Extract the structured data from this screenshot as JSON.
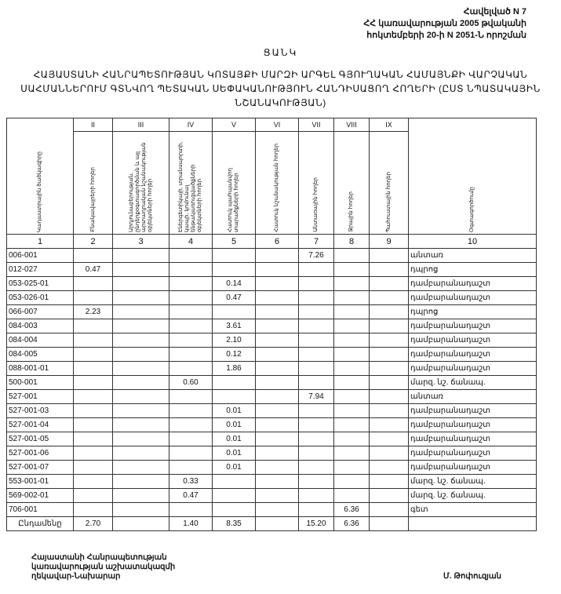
{
  "annex": {
    "line1": "Հավելված N 7",
    "line2": "ՀՀ կառավարության 2005 թվականի",
    "line3": "հոկտեմբերի 20-ի N 2051-Ն որոշման"
  },
  "title": "ՑԱՆԿ",
  "subtitle": "ՀԱՅԱՍՏԱՆԻ ՀԱՆՐԱՊԵՏՈՒԹՅԱՆ ԿՈՏԱՅՔԻ ՄԱՐԶԻ ԱՐԳԵԼ ԳՅՈՒՂԱԿԱՆ ՀԱՄԱՅՆՔԻ ՎԱՐՉԱԿԱՆ ՍԱՀՄԱՆՆԵՐՈՒՄ ԳՏՆՎՈՂ ՊԵՏԱԿԱՆ ՍԵՓԱԿԱՆՈՒԹՅՈՒՆ ՀԱՆԴԻՍԱՑՈՂ ՀՈՂԵՐԻ (ԸՍՏ ՆՊԱՏԱԿԱՅԻՆ ՆՇԱՆԱԿՈՒԹՅԱՆ)",
  "table": {
    "roman": [
      "II",
      "III",
      "IV",
      "V",
      "VI",
      "VII",
      "VIII",
      "IX"
    ],
    "headers": [
      "Կադաստրային ծածկագիրը",
      "Բնակավայրերի հողեր",
      "Արդյունաբերության, ընդերքօգտագործման և այլ արտադրական նշանակության օբյեկտների հողեր",
      "Էներգետիկայի, տրանսպորտի, կապի, կոմունալ ենթակառուցվածքների օբյեկտների հողեր",
      "Հատուկ պահպանվող տարածքների հողեր",
      "Հատուկ նշանակության հողեր",
      "Անտառային հողեր",
      "Ջրային հողեր",
      "Պահուստային հողեր",
      "Օգտագործումը"
    ],
    "index": [
      "1",
      "2",
      "3",
      "4",
      "5",
      "6",
      "7",
      "8",
      "9",
      "10"
    ],
    "rows": [
      [
        "006-001",
        "",
        "",
        "",
        "",
        "",
        "7.26",
        "",
        "",
        "անտառ"
      ],
      [
        "012-027",
        "0.47",
        "",
        "",
        "",
        "",
        "",
        "",
        "",
        "դպրոց"
      ],
      [
        "053-025-01",
        "",
        "",
        "",
        "0.14",
        "",
        "",
        "",
        "",
        "դամբարանադաշտ"
      ],
      [
        "053-026-01",
        "",
        "",
        "",
        "0.47",
        "",
        "",
        "",
        "",
        "դամբարանադաշտ"
      ],
      [
        "066-007",
        "2.23",
        "",
        "",
        "",
        "",
        "",
        "",
        "",
        "դպրոց"
      ],
      [
        "084-003",
        "",
        "",
        "",
        "3.61",
        "",
        "",
        "",
        "",
        "դամբարանադաշտ"
      ],
      [
        "084-004",
        "",
        "",
        "",
        "2.10",
        "",
        "",
        "",
        "",
        "դամբարանադաշտ"
      ],
      [
        "084-005",
        "",
        "",
        "",
        "0.12",
        "",
        "",
        "",
        "",
        "դամբարանադաշտ"
      ],
      [
        "088-001-01",
        "",
        "",
        "",
        "1.86",
        "",
        "",
        "",
        "",
        "դամբարանադաշտ"
      ],
      [
        "500-001",
        "",
        "",
        "0.60",
        "",
        "",
        "",
        "",
        "",
        "մարզ. նշ. ճանապ."
      ],
      [
        "527-001",
        "",
        "",
        "",
        "",
        "",
        "7.94",
        "",
        "",
        "անտառ"
      ],
      [
        "527-001-03",
        "",
        "",
        "",
        "0.01",
        "",
        "",
        "",
        "",
        "դամբարանադաշտ"
      ],
      [
        "527-001-04",
        "",
        "",
        "",
        "0.01",
        "",
        "",
        "",
        "",
        "դամբարանադաշտ"
      ],
      [
        "527-001-05",
        "",
        "",
        "",
        "0.01",
        "",
        "",
        "",
        "",
        "դամբարանադաշտ"
      ],
      [
        "527-001-06",
        "",
        "",
        "",
        "0.01",
        "",
        "",
        "",
        "",
        "դամբարանադաշտ"
      ],
      [
        "527-001-07",
        "",
        "",
        "",
        "0.01",
        "",
        "",
        "",
        "",
        "դամբարանադաշտ"
      ],
      [
        "553-001-01",
        "",
        "",
        "0.33",
        "",
        "",
        "",
        "",
        "",
        "մարզ. նշ. ճանապ."
      ],
      [
        "569-002-01",
        "",
        "",
        "0.47",
        "",
        "",
        "",
        "",
        "",
        "մարզ. նշ. ճանապ."
      ],
      [
        "706-001",
        "",
        "",
        "",
        "",
        "",
        "",
        "6.36",
        "",
        "գետ"
      ]
    ],
    "total": [
      "Ընդամենը",
      "2.70",
      "",
      "1.40",
      "8.35",
      "",
      "15.20",
      "6.36",
      "",
      ""
    ]
  },
  "footer": {
    "left1": "Հայաստանի Հանրապետության",
    "left2": "կառավարության աշխատակազմի",
    "left3": "ղեկավար-Նախարար",
    "right": "Մ. Թոփուզյան"
  }
}
